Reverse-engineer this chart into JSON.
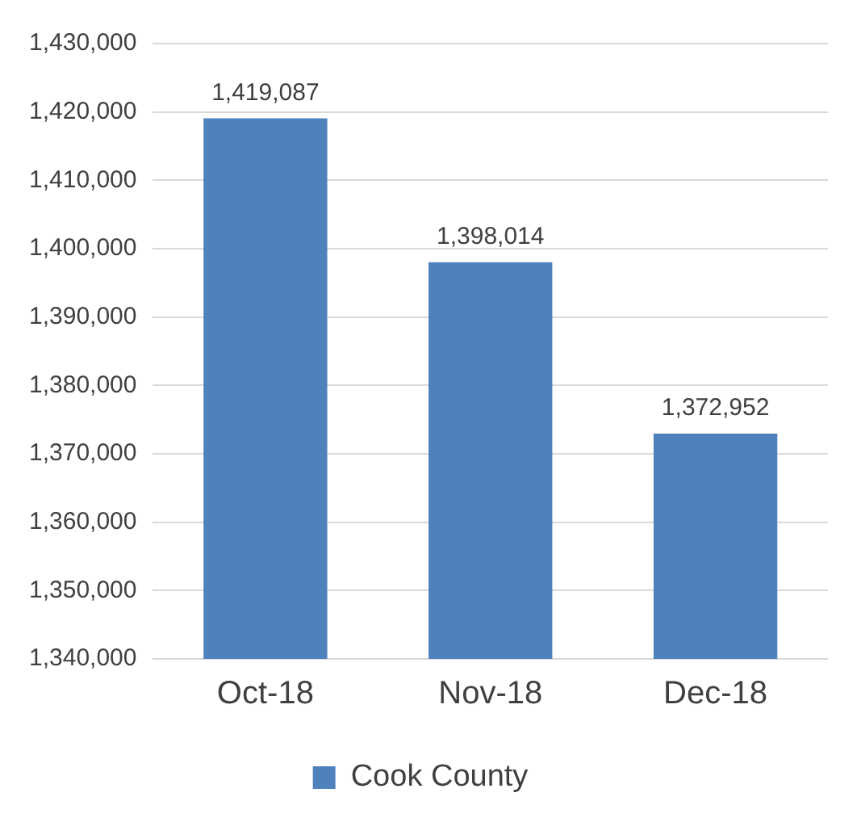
{
  "chart_data": {
    "type": "bar",
    "categories": [
      "Oct-18",
      "Nov-18",
      "Dec-18"
    ],
    "series": [
      {
        "name": "Cook County",
        "color": "#4f81bd",
        "values": [
          1419087,
          1398014,
          1372952
        ],
        "value_labels": [
          "1,419,087",
          "1,398,014",
          "1,372,952"
        ]
      }
    ],
    "ylim": [
      1340000,
      1430000
    ],
    "yticks": [
      {
        "value": 1340000,
        "label": "1,340,000"
      },
      {
        "value": 1350000,
        "label": "1,350,000"
      },
      {
        "value": 1360000,
        "label": "1,360,000"
      },
      {
        "value": 1370000,
        "label": "1,370,000"
      },
      {
        "value": 1380000,
        "label": "1,380,000"
      },
      {
        "value": 1390000,
        "label": "1,390,000"
      },
      {
        "value": 1400000,
        "label": "1,400,000"
      },
      {
        "value": 1410000,
        "label": "1,410,000"
      },
      {
        "value": 1420000,
        "label": "1,420,000"
      },
      {
        "value": 1430000,
        "label": "1,430,000"
      }
    ],
    "grid": "y",
    "legend": "bottom"
  }
}
